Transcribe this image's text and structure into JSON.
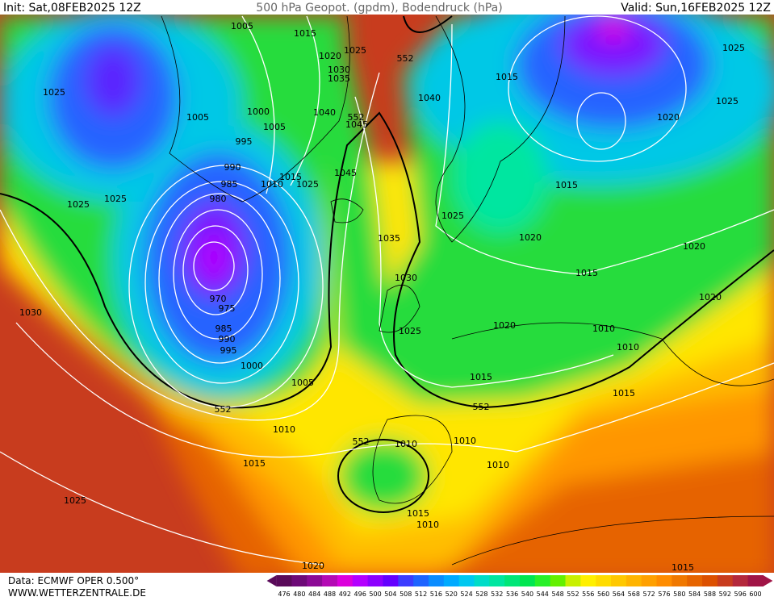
{
  "header": {
    "init": "Init: Sat,08FEB2025 12Z",
    "title": "500 hPa Geopot. (gpdm), Bodendruck (hPa)",
    "valid": "Valid: Sun,16FEB2025 12Z"
  },
  "footer": {
    "data": "Data: ECMWF OPER 0.500°",
    "site": "WWW.WETTERZENTRALE.DE"
  },
  "isobar_labels": [
    1005,
    1015,
    1025,
    1020,
    1030,
    1035,
    1025,
    1005,
    1000,
    1005,
    1040,
    1045,
    995,
    990,
    985,
    980,
    1015,
    1010,
    1025,
    1045,
    1025,
    1025,
    1035,
    1030,
    1025,
    970,
    975,
    985,
    990,
    995,
    1000,
    1005,
    1030,
    1010,
    1015,
    1025,
    1020,
    1040,
    1015,
    1025,
    1025,
    1020,
    1015,
    1025,
    1020,
    1015,
    1020,
    1020,
    1020,
    1010,
    1010,
    1015,
    1015,
    1010,
    1010,
    1010,
    1015,
    1010,
    1015
  ],
  "geopotential_labels": [
    552,
    552,
    552,
    552,
    552
  ],
  "legend": {
    "ticks": [
      476,
      480,
      484,
      488,
      492,
      496,
      500,
      504,
      508,
      512,
      516,
      520,
      524,
      528,
      532,
      536,
      540,
      544,
      548,
      552,
      556,
      560,
      564,
      568,
      572,
      576,
      580,
      584,
      588,
      592,
      596,
      600
    ],
    "colors": [
      "#5a0a5a",
      "#6e0a78",
      "#8c0a96",
      "#b40ab4",
      "#dc00dc",
      "#b400ff",
      "#8c00ff",
      "#6400ff",
      "#3c3cff",
      "#1e64ff",
      "#0a8cff",
      "#00aaff",
      "#00c8f0",
      "#00dcc8",
      "#00e6a0",
      "#00e678",
      "#00e650",
      "#28f028",
      "#64f000",
      "#c8f000",
      "#fff000",
      "#ffdc00",
      "#ffc800",
      "#ffb400",
      "#ffa000",
      "#ff8c00",
      "#f07800",
      "#e66400",
      "#dc5000",
      "#c83c1e",
      "#b4283c",
      "#a01446"
    ]
  }
}
